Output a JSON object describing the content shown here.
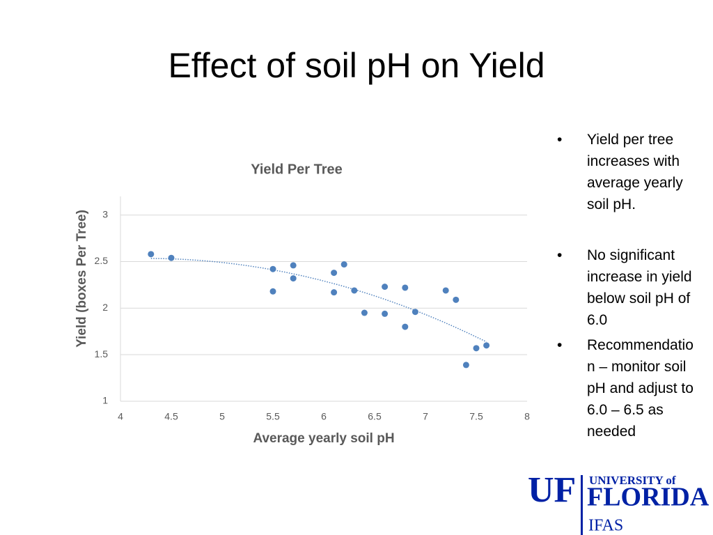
{
  "slide": {
    "title": "Effect of soil pH on Yield",
    "bullets": [
      "Yield per tree increases with average yearly soil pH.",
      "No significant increase in yield below soil pH of 6.0",
      "Recommendation – monitor soil pH and adjust to 6.0 – 6.5 as needed"
    ],
    "logo": {
      "mark": "UF",
      "line1": "UNIVERSITY of",
      "line2": "FLORIDA",
      "line3": "IFAS"
    }
  },
  "chart_data": {
    "type": "scatter",
    "title": "Yield Per Tree",
    "x_label": "Average yearly soil pH",
    "y_label": "Yield  (boxes Per Tree)",
    "series": [
      {
        "name": "Yield",
        "color": "#4f81bd",
        "x": [
          4.3,
          4.5,
          5.5,
          5.5,
          5.7,
          5.7,
          6.1,
          6.1,
          6.2,
          6.3,
          6.4,
          6.6,
          6.6,
          6.8,
          6.8,
          6.9,
          7.2,
          7.3,
          7.4,
          7.5,
          7.6
        ],
        "values": [
          2.58,
          2.54,
          2.42,
          2.18,
          2.46,
          2.32,
          2.38,
          2.17,
          2.47,
          2.19,
          1.95,
          2.23,
          1.94,
          2.22,
          1.8,
          1.96,
          2.19,
          2.09,
          1.39,
          1.57,
          1.6
        ]
      }
    ],
    "xlim": [
      4,
      8
    ],
    "xticks": [
      4,
      4.5,
      5,
      5.5,
      6,
      6.5,
      7,
      7.5,
      8
    ],
    "ylim": [
      1,
      3.2
    ],
    "yticks": [
      1,
      1.5,
      2,
      2.5,
      3
    ],
    "grid": true,
    "trendline": "polynomial"
  }
}
